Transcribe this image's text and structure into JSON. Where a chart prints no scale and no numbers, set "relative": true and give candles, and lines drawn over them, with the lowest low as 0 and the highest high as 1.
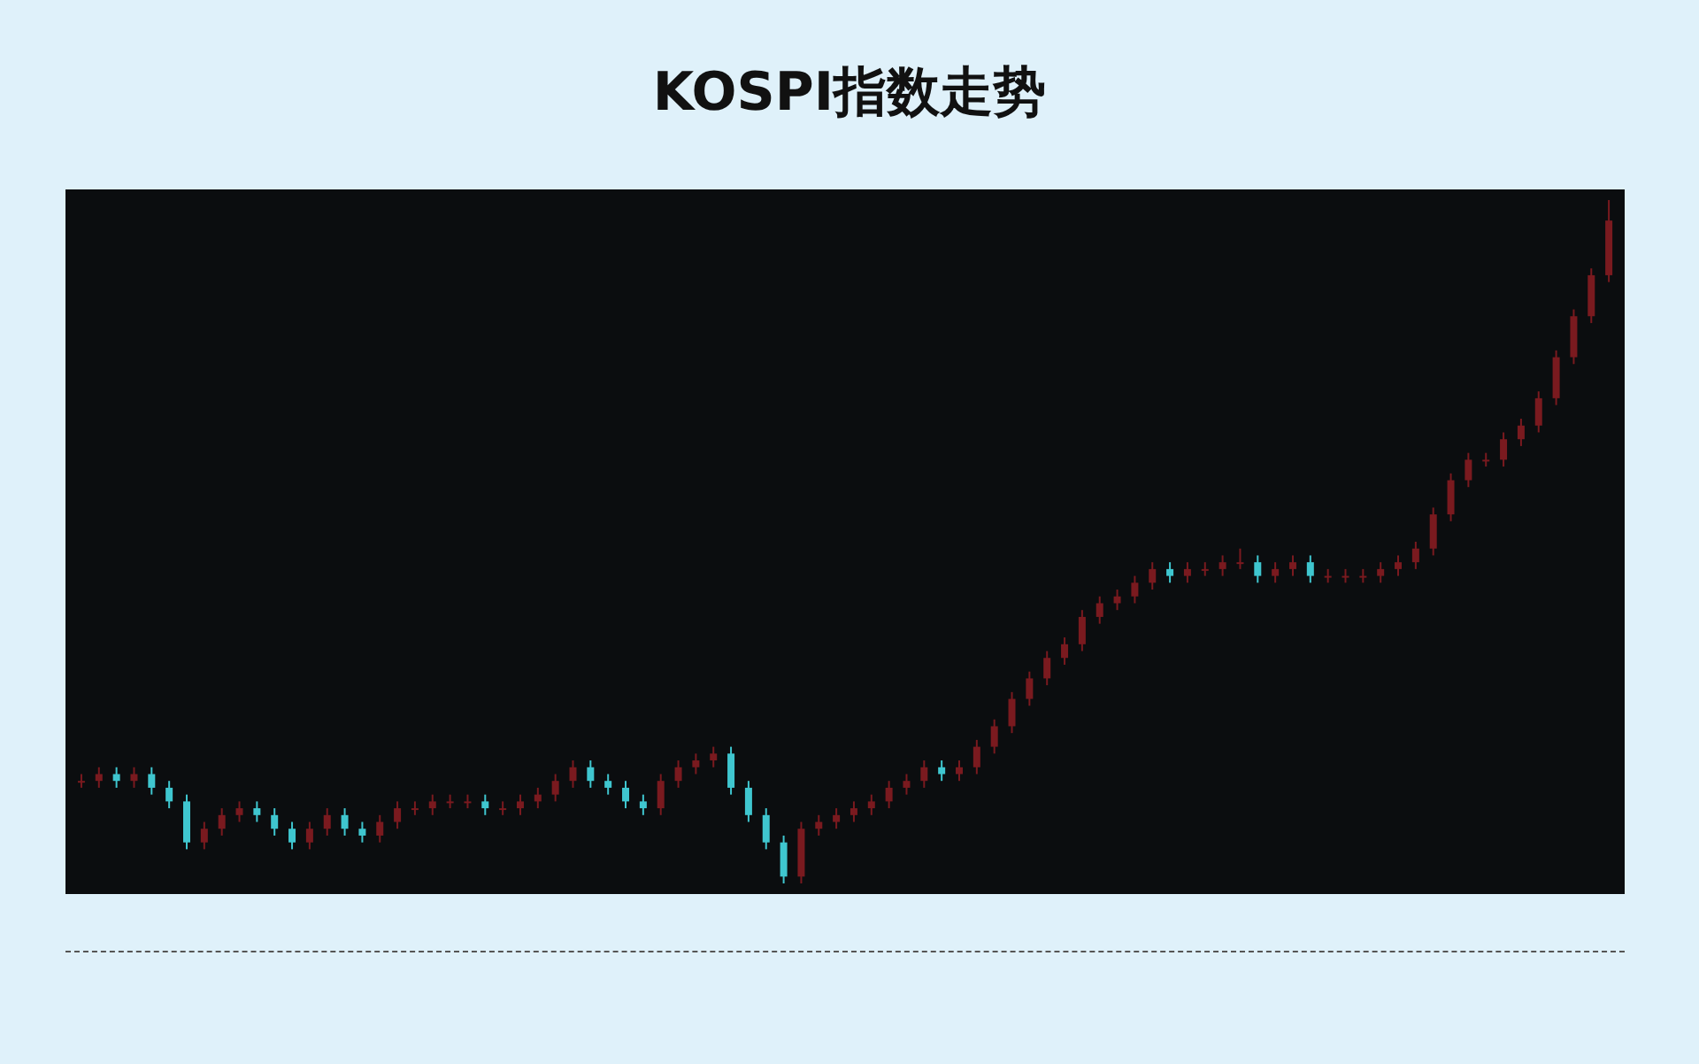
{
  "chart_data": {
    "type": "candlestick",
    "title": "KOSPI指数走势",
    "relative": true,
    "categories": [
      null,
      null,
      null,
      null,
      null,
      null,
      null,
      null,
      null,
      null,
      null,
      null,
      null,
      null,
      null,
      null,
      null,
      null,
      null,
      null,
      null,
      null,
      null,
      null,
      null,
      null,
      null,
      null,
      null,
      null,
      null,
      null,
      null,
      null,
      null,
      null,
      null,
      null,
      null,
      null,
      null,
      null,
      null,
      null,
      null,
      null,
      null,
      null,
      null,
      null,
      null,
      null,
      null,
      null,
      null,
      null,
      null,
      null,
      null,
      null,
      null,
      null,
      null,
      null,
      null,
      null,
      null,
      null,
      null,
      null,
      null,
      null,
      null,
      null,
      null,
      null,
      null,
      null,
      null,
      null,
      null,
      null,
      null,
      null,
      null,
      null,
      null,
      null
    ],
    "colors": [
      "#7a1a1f",
      "#7a1a1f",
      "#3fc6cf",
      "#7a1a1f",
      "#3fc6cf",
      "#3fc6cf",
      "#3fc6cf",
      "#7a1a1f",
      "#7a1a1f",
      "#7a1a1f",
      "#3fc6cf",
      "#3fc6cf",
      "#3fc6cf",
      "#7a1a1f",
      "#7a1a1f",
      "#3fc6cf",
      "#3fc6cf",
      "#7a1a1f",
      "#7a1a1f",
      "#7a1a1f",
      "#7a1a1f",
      "#7a1a1f",
      "#7a1a1f",
      "#3fc6cf",
      "#7a1a1f",
      "#7a1a1f",
      "#7a1a1f",
      "#7a1a1f",
      "#7a1a1f",
      "#3fc6cf",
      "#3fc6cf",
      "#3fc6cf",
      "#3fc6cf",
      "#7a1a1f",
      "#7a1a1f",
      "#7a1a1f",
      "#7a1a1f",
      "#3fc6cf",
      "#3fc6cf",
      "#3fc6cf",
      "#3fc6cf",
      "#7a1a1f",
      "#7a1a1f",
      "#7a1a1f",
      "#7a1a1f",
      "#7a1a1f",
      "#7a1a1f",
      "#7a1a1f",
      "#7a1a1f",
      "#3fc6cf",
      "#7a1a1f",
      "#7a1a1f",
      "#7a1a1f",
      "#7a1a1f",
      "#7a1a1f",
      "#7a1a1f",
      "#7a1a1f",
      "#7a1a1f",
      "#7a1a1f",
      "#7a1a1f",
      "#7a1a1f",
      "#7a1a1f",
      "#3fc6cf",
      "#7a1a1f",
      "#7a1a1f",
      "#7a1a1f",
      "#7a1a1f",
      "#3fc6cf",
      "#7a1a1f",
      "#7a1a1f",
      "#3fc6cf",
      "#7a1a1f",
      "#7a1a1f",
      "#7a1a1f",
      "#7a1a1f",
      "#7a1a1f",
      "#7a1a1f",
      "#7a1a1f",
      "#7a1a1f",
      "#7a1a1f",
      "#7a1a1f",
      "#7a1a1f",
      "#7a1a1f",
      "#7a1a1f",
      "#7a1a1f",
      "#7a1a1f",
      "#7a1a1f",
      "#7a1a1f"
    ],
    "ohlc": [
      [
        0.15,
        0.16,
        0.14,
        0.15
      ],
      [
        0.15,
        0.17,
        0.14,
        0.16
      ],
      [
        0.16,
        0.17,
        0.14,
        0.15
      ],
      [
        0.15,
        0.17,
        0.14,
        0.16
      ],
      [
        0.16,
        0.17,
        0.13,
        0.14
      ],
      [
        0.14,
        0.15,
        0.11,
        0.12
      ],
      [
        0.12,
        0.13,
        0.05,
        0.06
      ],
      [
        0.06,
        0.09,
        0.05,
        0.08
      ],
      [
        0.08,
        0.11,
        0.07,
        0.1
      ],
      [
        0.1,
        0.12,
        0.09,
        0.11
      ],
      [
        0.11,
        0.12,
        0.09,
        0.1
      ],
      [
        0.1,
        0.11,
        0.07,
        0.08
      ],
      [
        0.08,
        0.09,
        0.05,
        0.06
      ],
      [
        0.06,
        0.09,
        0.05,
        0.08
      ],
      [
        0.08,
        0.11,
        0.07,
        0.1
      ],
      [
        0.1,
        0.11,
        0.07,
        0.08
      ],
      [
        0.08,
        0.09,
        0.06,
        0.07
      ],
      [
        0.07,
        0.1,
        0.06,
        0.09
      ],
      [
        0.09,
        0.12,
        0.08,
        0.11
      ],
      [
        0.11,
        0.12,
        0.1,
        0.11
      ],
      [
        0.11,
        0.13,
        0.1,
        0.12
      ],
      [
        0.12,
        0.13,
        0.11,
        0.12
      ],
      [
        0.12,
        0.13,
        0.11,
        0.12
      ],
      [
        0.12,
        0.13,
        0.1,
        0.11
      ],
      [
        0.11,
        0.12,
        0.1,
        0.11
      ],
      [
        0.11,
        0.13,
        0.1,
        0.12
      ],
      [
        0.12,
        0.14,
        0.11,
        0.13
      ],
      [
        0.13,
        0.16,
        0.12,
        0.15
      ],
      [
        0.15,
        0.18,
        0.14,
        0.17
      ],
      [
        0.17,
        0.18,
        0.14,
        0.15
      ],
      [
        0.15,
        0.16,
        0.13,
        0.14
      ],
      [
        0.14,
        0.15,
        0.11,
        0.12
      ],
      [
        0.12,
        0.13,
        0.1,
        0.11
      ],
      [
        0.11,
        0.16,
        0.1,
        0.15
      ],
      [
        0.15,
        0.18,
        0.14,
        0.17
      ],
      [
        0.17,
        0.19,
        0.16,
        0.18
      ],
      [
        0.18,
        0.2,
        0.17,
        0.19
      ],
      [
        0.19,
        0.2,
        0.13,
        0.14
      ],
      [
        0.14,
        0.15,
        0.09,
        0.1
      ],
      [
        0.1,
        0.11,
        0.05,
        0.06
      ],
      [
        0.06,
        0.07,
        0.0,
        0.01
      ],
      [
        0.01,
        0.09,
        0.0,
        0.08
      ],
      [
        0.08,
        0.1,
        0.07,
        0.09
      ],
      [
        0.09,
        0.11,
        0.08,
        0.1
      ],
      [
        0.1,
        0.12,
        0.09,
        0.11
      ],
      [
        0.11,
        0.13,
        0.1,
        0.12
      ],
      [
        0.12,
        0.15,
        0.11,
        0.14
      ],
      [
        0.14,
        0.16,
        0.13,
        0.15
      ],
      [
        0.15,
        0.18,
        0.14,
        0.17
      ],
      [
        0.17,
        0.18,
        0.15,
        0.16
      ],
      [
        0.16,
        0.18,
        0.15,
        0.17
      ],
      [
        0.17,
        0.21,
        0.16,
        0.2
      ],
      [
        0.2,
        0.24,
        0.19,
        0.23
      ],
      [
        0.23,
        0.28,
        0.22,
        0.27
      ],
      [
        0.27,
        0.31,
        0.26,
        0.3
      ],
      [
        0.3,
        0.34,
        0.29,
        0.33
      ],
      [
        0.33,
        0.36,
        0.32,
        0.35
      ],
      [
        0.35,
        0.4,
        0.34,
        0.39
      ],
      [
        0.39,
        0.42,
        0.38,
        0.41
      ],
      [
        0.41,
        0.43,
        0.4,
        0.42
      ],
      [
        0.42,
        0.45,
        0.41,
        0.44
      ],
      [
        0.44,
        0.47,
        0.43,
        0.46
      ],
      [
        0.46,
        0.47,
        0.44,
        0.45
      ],
      [
        0.45,
        0.47,
        0.44,
        0.46
      ],
      [
        0.46,
        0.47,
        0.45,
        0.46
      ],
      [
        0.46,
        0.48,
        0.45,
        0.47
      ],
      [
        0.47,
        0.49,
        0.46,
        0.47
      ],
      [
        0.47,
        0.48,
        0.44,
        0.45
      ],
      [
        0.45,
        0.47,
        0.44,
        0.46
      ],
      [
        0.46,
        0.48,
        0.45,
        0.47
      ],
      [
        0.47,
        0.48,
        0.44,
        0.45
      ],
      [
        0.45,
        0.46,
        0.44,
        0.45
      ],
      [
        0.45,
        0.46,
        0.44,
        0.45
      ],
      [
        0.45,
        0.46,
        0.44,
        0.45
      ],
      [
        0.45,
        0.47,
        0.44,
        0.46
      ],
      [
        0.46,
        0.48,
        0.45,
        0.47
      ],
      [
        0.47,
        0.5,
        0.46,
        0.49
      ],
      [
        0.49,
        0.55,
        0.48,
        0.54
      ],
      [
        0.54,
        0.6,
        0.53,
        0.59
      ],
      [
        0.59,
        0.63,
        0.58,
        0.62
      ],
      [
        0.62,
        0.63,
        0.61,
        0.62
      ],
      [
        0.62,
        0.66,
        0.61,
        0.65
      ],
      [
        0.65,
        0.68,
        0.64,
        0.67
      ],
      [
        0.67,
        0.72,
        0.66,
        0.71
      ],
      [
        0.71,
        0.78,
        0.7,
        0.77
      ],
      [
        0.77,
        0.84,
        0.76,
        0.83
      ],
      [
        0.83,
        0.9,
        0.82,
        0.89
      ],
      [
        0.89,
        1.0,
        0.88,
        0.97
      ]
    ]
  }
}
